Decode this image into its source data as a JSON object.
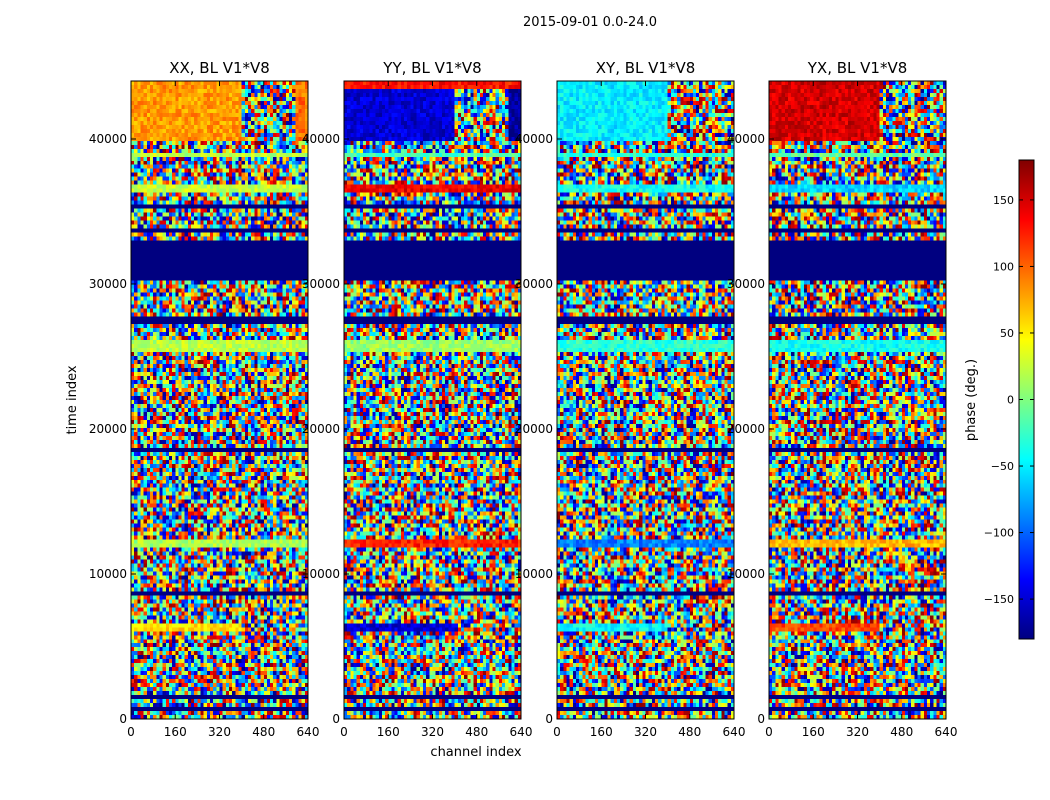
{
  "figure": {
    "suptitle": "2015-09-01 0.0-24.0"
  },
  "chart_data": {
    "type": "heatmap",
    "title": "2015-09-01 0.0-24.0",
    "xlabel": "channel index",
    "ylabel": "time index",
    "xlim": [
      0,
      640
    ],
    "ylim": [
      0,
      44000
    ],
    "xticks": [
      0,
      160,
      320,
      480,
      640
    ],
    "yticks": [
      0,
      10000,
      20000,
      30000,
      40000
    ],
    "xtick_labels": [
      "0",
      "160",
      "320",
      "480",
      "640"
    ],
    "ytick_labels": [
      "0",
      "10000",
      "20000",
      "30000",
      "40000"
    ],
    "panels": [
      {
        "title": "XX, BL V1*V8",
        "bands": [
          {
            "t0": 40000,
            "t1": 44000,
            "c0": 0,
            "c1": 400,
            "value": 80
          },
          {
            "t0": 40000,
            "t1": 44000,
            "c0": 600,
            "c1": 640,
            "value": 95
          },
          {
            "t0": 38700,
            "t1": 39100,
            "c0": 0,
            "c1": 640,
            "value": 20
          },
          {
            "t0": 36300,
            "t1": 36900,
            "c0": 0,
            "c1": 640,
            "value": 25
          },
          {
            "t0": 25300,
            "t1": 26000,
            "c0": 0,
            "c1": 640,
            "value": 20
          },
          {
            "t0": 11800,
            "t1": 12300,
            "c0": 0,
            "c1": 640,
            "value": 15
          },
          {
            "t0": 6100,
            "t1": 6500,
            "c0": 0,
            "c1": 400,
            "value": 55
          }
        ]
      },
      {
        "title": "YY, BL V1*V8",
        "bands": [
          {
            "t0": 40000,
            "t1": 44000,
            "c0": 0,
            "c1": 400,
            "value": -150
          },
          {
            "t0": 40000,
            "t1": 44000,
            "c0": 590,
            "c1": 640,
            "value": -170
          },
          {
            "t0": 43500,
            "t1": 44000,
            "c0": 0,
            "c1": 640,
            "value": 130
          },
          {
            "t0": 38700,
            "t1": 39100,
            "c0": 0,
            "c1": 640,
            "value": -20
          },
          {
            "t0": 36300,
            "t1": 36900,
            "c0": 0,
            "c1": 640,
            "value": 140
          },
          {
            "t0": 25300,
            "t1": 26000,
            "c0": 0,
            "c1": 640,
            "value": 10
          },
          {
            "t0": 11800,
            "t1": 12300,
            "c0": 0,
            "c1": 640,
            "value": 125
          },
          {
            "t0": 6100,
            "t1": 6500,
            "c0": 0,
            "c1": 400,
            "value": -150
          }
        ]
      },
      {
        "title": "XY, BL V1*V8",
        "bands": [
          {
            "t0": 40000,
            "t1": 44000,
            "c0": 0,
            "c1": 400,
            "value": -50
          },
          {
            "t0": 38700,
            "t1": 39100,
            "c0": 0,
            "c1": 640,
            "value": -30
          },
          {
            "t0": 36300,
            "t1": 36900,
            "c0": 0,
            "c1": 640,
            "value": -40
          },
          {
            "t0": 25300,
            "t1": 26000,
            "c0": 0,
            "c1": 640,
            "value": -30
          },
          {
            "t0": 11800,
            "t1": 12300,
            "c0": 0,
            "c1": 640,
            "value": -90
          },
          {
            "t0": 6100,
            "t1": 6500,
            "c0": 0,
            "c1": 400,
            "value": -45
          }
        ]
      },
      {
        "title": "YX, BL V1*V8",
        "bands": [
          {
            "t0": 40000,
            "t1": 44000,
            "c0": 0,
            "c1": 400,
            "value": 150
          },
          {
            "t0": 38700,
            "t1": 39100,
            "c0": 0,
            "c1": 640,
            "value": -10
          },
          {
            "t0": 36300,
            "t1": 36900,
            "c0": 0,
            "c1": 640,
            "value": -60
          },
          {
            "t0": 25300,
            "t1": 26000,
            "c0": 0,
            "c1": 640,
            "value": -40
          },
          {
            "t0": 11800,
            "t1": 12300,
            "c0": 0,
            "c1": 640,
            "value": 70
          },
          {
            "t0": 6100,
            "t1": 6500,
            "c0": 0,
            "c1": 400,
            "value": 110
          }
        ]
      }
    ],
    "flagged_bands": [
      {
        "t0": 30200,
        "t1": 32900,
        "value": -180
      },
      {
        "t0": 27300,
        "t1": 27700,
        "value": -180
      },
      {
        "t0": 18300,
        "t1": 18600,
        "value": -180
      },
      {
        "t0": 8500,
        "t1": 8800,
        "value": -180
      },
      {
        "t0": 33500,
        "t1": 33800,
        "value": -180
      },
      {
        "t0": 35300,
        "t1": 35600,
        "value": -180
      },
      {
        "t0": 1500,
        "t1": 1700,
        "value": -180
      },
      {
        "t0": 2400,
        "t1": 2600,
        "value": -180
      },
      {
        "t0": 600,
        "t1": 800,
        "value": -180
      }
    ],
    "colorbar": {
      "label": "phase (deg.)",
      "vmin": -180,
      "vmax": 180,
      "ticks": [
        150,
        100,
        50,
        0,
        -50,
        -100,
        -150
      ],
      "tick_labels": [
        "150",
        "100",
        "50",
        "0",
        "−50",
        "−100",
        "−150"
      ],
      "colormap": "jet"
    }
  }
}
